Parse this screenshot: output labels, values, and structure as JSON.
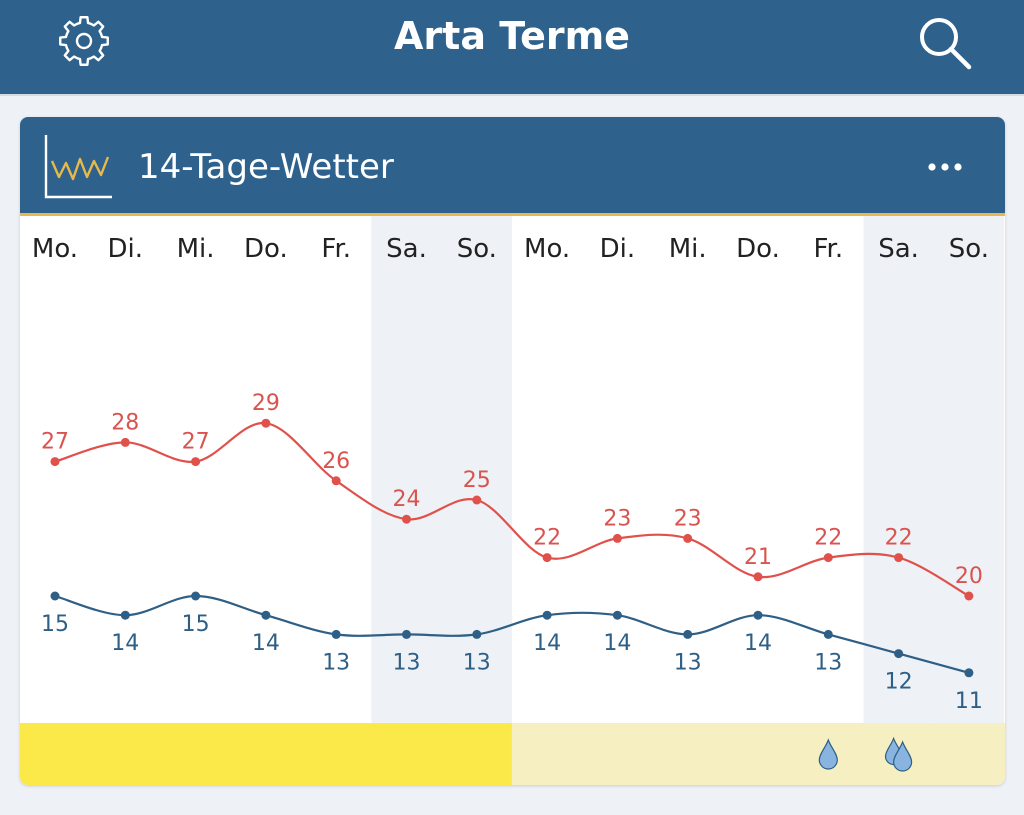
{
  "header": {
    "title": "Arta Terme",
    "settings_icon": "gear-icon",
    "search_icon": "search-icon",
    "background": "#2e628d"
  },
  "card": {
    "title": "14-Tage-Wetter",
    "chart_icon": "line-chart-icon",
    "more_icon": "more-dots-icon"
  },
  "chart_data": {
    "type": "line",
    "categories": [
      "Mo.",
      "Di.",
      "Mi.",
      "Do.",
      "Fr.",
      "Sa.",
      "So.",
      "Mo.",
      "Di.",
      "Mi.",
      "Do.",
      "Fr.",
      "Sa.",
      "So."
    ],
    "weekend_indices": [
      5,
      6,
      12,
      13
    ],
    "series": [
      {
        "values": [
          27,
          28,
          27,
          29,
          26,
          24,
          25,
          22,
          23,
          23,
          21,
          22,
          22,
          20
        ],
        "color": "#e0514b"
      },
      {
        "values": [
          15,
          14,
          15,
          14,
          13,
          13,
          13,
          14,
          14,
          13,
          14,
          13,
          12,
          11
        ],
        "color": "#2e5f86"
      }
    ],
    "precipitation": [
      0,
      0,
      0,
      0,
      0,
      0,
      0,
      0,
      0,
      0,
      0,
      1,
      2,
      0
    ],
    "colors": {
      "week1_band": "#fbe94a",
      "week2_band": "#f5efc2",
      "weekend_bg": "#eef1f5",
      "drop": "#8ab4e0"
    }
  }
}
